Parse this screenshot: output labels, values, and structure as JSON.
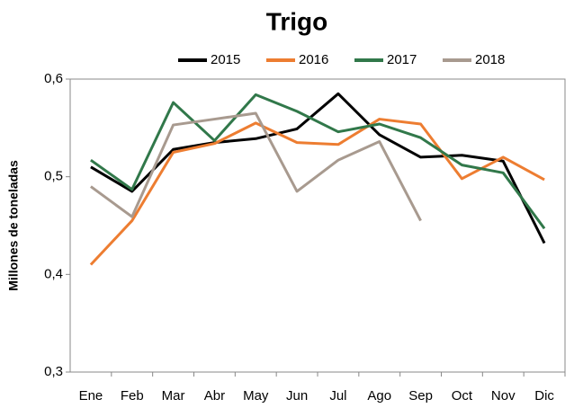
{
  "chart_data": {
    "type": "line",
    "title": "Trigo",
    "ylabel": "Millones de toneladas",
    "categories": [
      "Ene",
      "Feb",
      "Mar",
      "Abr",
      "May",
      "Jun",
      "Jul",
      "Ago",
      "Sep",
      "Oct",
      "Nov",
      "Dic"
    ],
    "series": [
      {
        "name": "2015",
        "color": "#000000",
        "values": [
          0.51,
          0.485,
          0.528,
          0.535,
          0.539,
          0.549,
          0.585,
          0.543,
          0.52,
          0.522,
          0.516,
          0.432
        ]
      },
      {
        "name": "2016",
        "color": "#ed7d31",
        "values": [
          0.41,
          0.455,
          0.525,
          0.534,
          0.555,
          0.535,
          0.533,
          0.559,
          0.554,
          0.498,
          0.52,
          0.497
        ]
      },
      {
        "name": "2017",
        "color": "#31784a",
        "values": [
          0.517,
          0.487,
          0.576,
          0.537,
          0.584,
          0.567,
          0.546,
          0.554,
          0.54,
          0.512,
          0.504,
          0.447
        ]
      },
      {
        "name": "2018",
        "color": "#a89a8f",
        "values": [
          0.49,
          0.459,
          0.553,
          0.559,
          0.565,
          0.485,
          0.517,
          0.536,
          0.455,
          null,
          null,
          null
        ]
      }
    ],
    "ylim": [
      0.3,
      0.6
    ],
    "yticks": [
      {
        "value": 0.3,
        "label": "0,3"
      },
      {
        "value": 0.4,
        "label": "0,4"
      },
      {
        "value": 0.5,
        "label": "0,5"
      },
      {
        "value": 0.6,
        "label": "0,6"
      }
    ]
  }
}
